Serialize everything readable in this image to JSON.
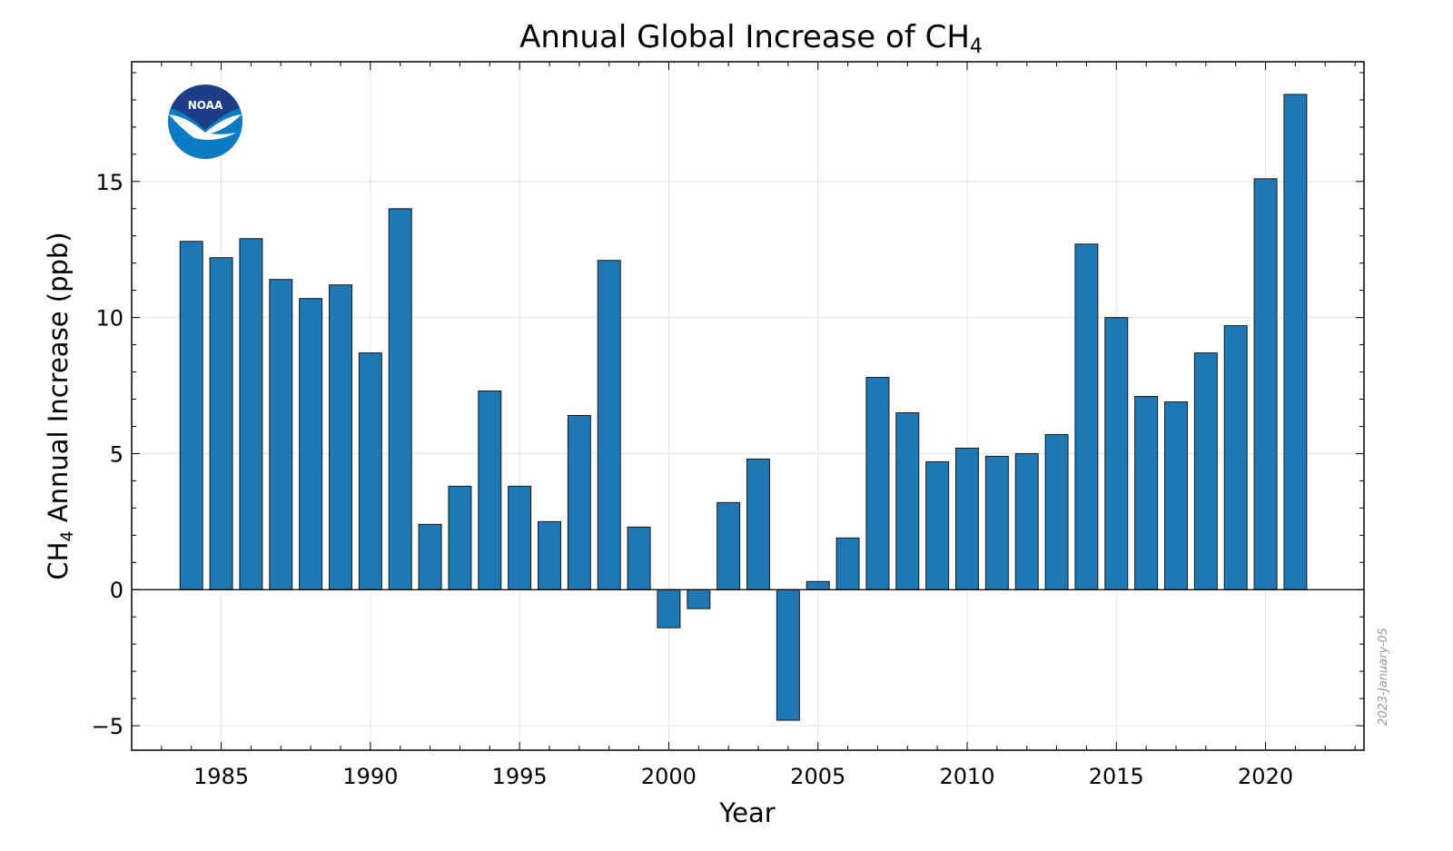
{
  "chart_data": {
    "type": "bar",
    "title": "Annual Global Increase of CH",
    "title_subscript": "4",
    "xlabel": "Year",
    "ylabel_prefix": "CH",
    "ylabel_subscript": "4",
    "ylabel_suffix": " Annual Increase (ppb)",
    "xlim": [
      1982,
      2023.3
    ],
    "ylim": [
      -5.9,
      19.4
    ],
    "x_ticks": [
      1985,
      1990,
      1995,
      2000,
      2005,
      2010,
      2015,
      2020
    ],
    "y_ticks": [
      -5,
      0,
      5,
      10,
      15
    ],
    "y_tick_labels": [
      "−5",
      "0",
      "5",
      "10",
      "15"
    ],
    "grid": true,
    "zero_line": true,
    "bar_color": "#1f77b4",
    "bar_edge_color": "#1a1a1a",
    "categories": [
      1984,
      1985,
      1986,
      1987,
      1988,
      1989,
      1990,
      1991,
      1992,
      1993,
      1994,
      1995,
      1996,
      1997,
      1998,
      1999,
      2000,
      2001,
      2002,
      2003,
      2004,
      2005,
      2006,
      2007,
      2008,
      2009,
      2010,
      2011,
      2012,
      2013,
      2014,
      2015,
      2016,
      2017,
      2018,
      2019,
      2020,
      2021
    ],
    "values": [
      12.8,
      12.2,
      12.9,
      11.4,
      10.7,
      11.2,
      8.7,
      14.0,
      2.4,
      3.8,
      7.3,
      3.8,
      2.5,
      6.4,
      12.1,
      2.3,
      -1.4,
      -0.7,
      3.2,
      4.8,
      -4.8,
      0.3,
      1.9,
      7.8,
      6.5,
      4.7,
      5.2,
      4.9,
      5.0,
      5.7,
      12.7,
      10.0,
      7.1,
      6.9,
      8.7,
      9.7,
      15.1,
      18.2
    ]
  },
  "logo": {
    "text": "NOAA",
    "name": "noaa-logo"
  },
  "stamp": "2023-January-05"
}
